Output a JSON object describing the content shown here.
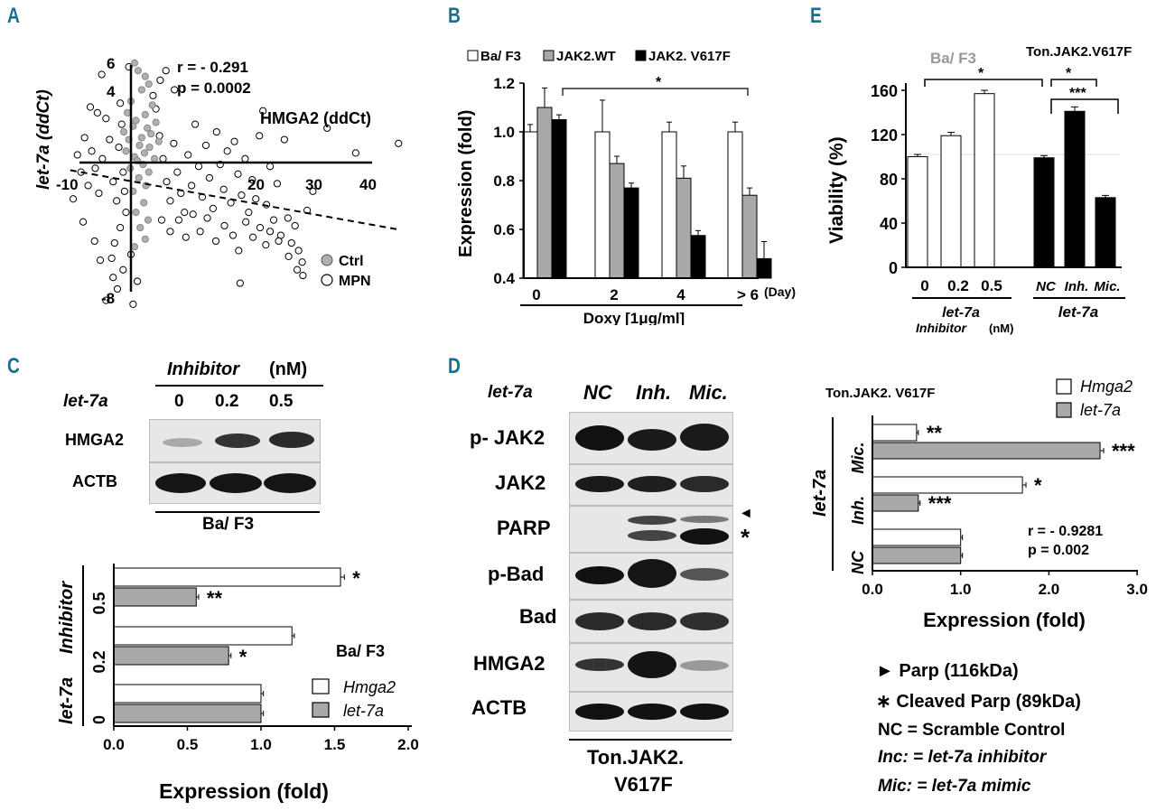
{
  "panels": {
    "a": {
      "letter": "A"
    },
    "b": {
      "letter": "B"
    },
    "c": {
      "letter": "C"
    },
    "d": {
      "letter": "D"
    },
    "e": {
      "letter": "E"
    }
  },
  "chart_data": [
    {
      "id": "A",
      "type": "scatter",
      "xlabel": "HMGA2 (ddCt)",
      "ylabel": "let-7a (ddCt)",
      "xticks": [
        "-10",
        "20",
        "30",
        "40"
      ],
      "yticks": [
        "6",
        "4",
        "-8"
      ],
      "xlim": [
        -12,
        42
      ],
      "ylim": [
        -8.5,
        6.5
      ],
      "stats": {
        "r": "r = - 0.291",
        "p": "p = 0.0002"
      },
      "legend": [
        {
          "name": "Ctrl",
          "color": "#b0b0b0"
        },
        {
          "name": "MPN",
          "color": "#ffffff"
        }
      ],
      "trendline": {
        "x": [
          -10,
          36
        ],
        "y": [
          -0.4,
          -3.5
        ],
        "style": "dashed"
      },
      "series": [
        {
          "name": "Ctrl",
          "color": "#b0b0b0",
          "points": [
            [
              -1,
              5.2
            ],
            [
              -0.5,
              4.8
            ],
            [
              0.5,
              4.5
            ],
            [
              1,
              4.1
            ],
            [
              0,
              3.8
            ],
            [
              -1.5,
              3.2
            ],
            [
              1.5,
              3.0
            ],
            [
              -2,
              2.6
            ],
            [
              0.5,
              2.5
            ],
            [
              -0.8,
              2.2
            ],
            [
              2,
              2.1
            ],
            [
              -1.2,
              1.9
            ],
            [
              0.8,
              1.8
            ],
            [
              -2.5,
              1.6
            ],
            [
              1.3,
              1.5
            ],
            [
              0,
              1.3
            ],
            [
              -1.8,
              1.2
            ],
            [
              2.4,
              1.1
            ],
            [
              -0.3,
              0.9
            ],
            [
              1.1,
              0.8
            ],
            [
              -2.2,
              0.6
            ],
            [
              0.4,
              0.5
            ],
            [
              -1,
              0.3
            ],
            [
              1.8,
              0.2
            ],
            [
              -0.6,
              0.1
            ],
            [
              0.2,
              -0.1
            ],
            [
              -1.6,
              -0.3
            ],
            [
              1,
              -0.5
            ],
            [
              -0.4,
              -0.8
            ],
            [
              0.6,
              -1.2
            ],
            [
              -1.2,
              -1.5
            ],
            [
              0.3,
              -2.1
            ],
            [
              -0.8,
              -2.6
            ],
            [
              0.9,
              -3.0
            ],
            [
              -0.2,
              -3.4
            ],
            [
              0.5,
              -4.0
            ],
            [
              -1,
              -4.4
            ]
          ]
        },
        {
          "name": "MPN",
          "color": "#ffffff",
          "points": [
            [
              -9,
              0.4
            ],
            [
              -8,
              1.3
            ],
            [
              -7,
              0.6
            ],
            [
              -6.5,
              -0.3
            ],
            [
              -8.5,
              -0.5
            ],
            [
              -5,
              2.3
            ],
            [
              -4.5,
              1.2
            ],
            [
              -5.5,
              0.2
            ],
            [
              -4,
              -1.0
            ],
            [
              -3.5,
              -2.0
            ],
            [
              -6,
              -1.6
            ],
            [
              -7.5,
              -1.2
            ],
            [
              -3,
              3.1
            ],
            [
              -2.8,
              2.0
            ],
            [
              -3.2,
              0.8
            ],
            [
              -2.6,
              -0.5
            ],
            [
              -2.4,
              -1.5
            ],
            [
              -2.2,
              -2.6
            ],
            [
              -3,
              -3.4
            ],
            [
              -3.8,
              -4.2
            ],
            [
              -4.2,
              -5.0
            ],
            [
              -2.6,
              -5.6
            ],
            [
              -3.4,
              -6.6
            ],
            [
              -5,
              -7.2
            ],
            [
              -4,
              -6.0
            ],
            [
              -1.5,
              -4.8
            ],
            [
              2,
              2.8
            ],
            [
              2.5,
              1.4
            ],
            [
              3,
              0.2
            ],
            [
              3.5,
              -1.0
            ],
            [
              4,
              -2.0
            ],
            [
              2.8,
              -3.0
            ],
            [
              4.5,
              1.0
            ],
            [
              5,
              -0.5
            ],
            [
              5.5,
              -1.6
            ],
            [
              6,
              -2.6
            ],
            [
              4,
              -3.6
            ],
            [
              6.5,
              0.4
            ],
            [
              7,
              -1.2
            ],
            [
              7.5,
              2.0
            ],
            [
              8,
              -0.2
            ],
            [
              8.5,
              -1.8
            ],
            [
              9,
              0.9
            ],
            [
              9.5,
              -0.8
            ],
            [
              10,
              -2.4
            ],
            [
              10.5,
              1.6
            ],
            [
              11,
              -0.1
            ],
            [
              11.5,
              -1.4
            ],
            [
              12,
              0.6
            ],
            [
              12.5,
              -2.1
            ],
            [
              13,
              1.1
            ],
            [
              13.5,
              -0.6
            ],
            [
              14,
              -1.7
            ],
            [
              14.5,
              0.2
            ],
            [
              15,
              -2.6
            ],
            [
              15.5,
              -0.9
            ],
            [
              16,
              -1.9
            ],
            [
              16.5,
              1.4
            ],
            [
              17,
              2.7
            ],
            [
              17.5,
              -2.2
            ],
            [
              18,
              -0.2
            ],
            [
              18.5,
              -3.0
            ],
            [
              18,
              -3.6
            ],
            [
              19,
              -1.1
            ],
            [
              19.5,
              -3.8
            ],
            [
              20,
              1.2
            ],
            [
              20.5,
              -2.9
            ],
            [
              21,
              -4.2
            ],
            [
              21.5,
              -3.3
            ],
            [
              22,
              -4.6
            ],
            [
              22.5,
              -5.2
            ],
            [
              21.8,
              -5.6
            ],
            [
              22.6,
              -5.9
            ],
            [
              20.6,
              -4.9
            ],
            [
              19.2,
              -4.1
            ],
            [
              17.4,
              -4.3
            ],
            [
              16.6,
              -3.4
            ],
            [
              15.6,
              -3.9
            ],
            [
              14.6,
              -3.1
            ],
            [
              13.6,
              -4.6
            ],
            [
              12.8,
              -3.8
            ],
            [
              11.6,
              -3.3
            ],
            [
              13.8,
              -6.3
            ],
            [
              10.4,
              -4.1
            ],
            [
              9.2,
              -2.9
            ],
            [
              8.2,
              -3.6
            ],
            [
              7.2,
              -2.7
            ],
            [
              6.2,
              -3.9
            ],
            [
              5.2,
              -3.0
            ],
            [
              2.6,
              4.3
            ],
            [
              3.4,
              4.8
            ],
            [
              36,
              1.0
            ],
            [
              30,
              0.5
            ],
            [
              26,
              1.8
            ],
            [
              24,
              -1.5
            ],
            [
              23.2,
              -2.5
            ],
            [
              1.6,
              3.5
            ],
            [
              -1.8,
              5.0
            ],
            [
              -0.6,
              -6.2
            ],
            [
              -6.2,
              2.6
            ],
            [
              -1.2,
              -7.4
            ],
            [
              -5.6,
              4.6
            ],
            [
              4.6,
              3.8
            ],
            [
              -7.2,
              2.9
            ],
            [
              -9.6,
              -1.9
            ],
            [
              -8.2,
              -3.1
            ],
            [
              -6.6,
              -4.1
            ],
            [
              -5.8,
              -5.1
            ]
          ]
        }
      ]
    },
    {
      "id": "B",
      "type": "bar",
      "ylabel": "Expression (fold)",
      "xlabel": "Doxy [1μg/ml]",
      "x_unit": "(Day)",
      "categories": [
        "0",
        "2",
        "4",
        "> 6"
      ],
      "yticks": [
        "0.4",
        "0.6",
        "0.8",
        "1.0",
        "1.2"
      ],
      "ylim": [
        0.4,
        1.2
      ],
      "significance": "*",
      "series": [
        {
          "name": "Ba/ F3",
          "color": "#ffffff",
          "values": [
            1.0,
            1.0,
            1.0,
            1.0
          ],
          "errors": [
            0.03,
            0.13,
            0.04,
            0.04
          ]
        },
        {
          "name": "JAK2.WT",
          "color": "#a9a9a9",
          "values": [
            1.1,
            0.87,
            0.81,
            0.74
          ],
          "errors": [
            0.08,
            0.03,
            0.05,
            0.03
          ]
        },
        {
          "name": "JAK2. V617F",
          "color": "#000000",
          "values": [
            1.05,
            0.77,
            0.575,
            0.48
          ],
          "errors": [
            0.02,
            0.02,
            0.02,
            0.07
          ]
        }
      ]
    },
    {
      "id": "E",
      "type": "bar",
      "ylabel": "Viability (%)",
      "yticks": [
        "0",
        "40",
        "80",
        "120",
        "160"
      ],
      "ylim": [
        0,
        170
      ],
      "groups": [
        {
          "title": "Ba/ F3",
          "categories": [
            "0",
            "0.2",
            "0.5"
          ],
          "color": "#ffffff",
          "values": [
            100,
            119,
            157
          ],
          "errors": [
            2,
            3,
            3
          ],
          "axis_label": "let-7a",
          "axis_sublabel": "Inhibitor",
          "axis_unit": "(nM)"
        },
        {
          "title": "Ton.JAK2.V617F",
          "categories": [
            "NC",
            "Inh.",
            "Mic."
          ],
          "color": "#000000",
          "values": [
            99,
            141,
            63
          ],
          "errors": [
            2,
            4,
            2
          ],
          "axis_label": "let-7a"
        }
      ],
      "significance": [
        "*",
        "*",
        "***"
      ]
    },
    {
      "id": "C-bar",
      "type": "bar",
      "orientation": "horizontal",
      "xlabel": "Expression (fold)",
      "ylabel_main": "let-7a",
      "ylabel_sub": "Inhibitor",
      "categories": [
        "0.5",
        "0.2",
        "0"
      ],
      "xticks": [
        "0.0",
        "0.5",
        "1.0",
        "1.5",
        "2.0"
      ],
      "xlim": [
        0,
        2.0
      ],
      "cell_label": "Ba/ F3",
      "series": [
        {
          "name": "Hmga2",
          "color": "#ffffff",
          "values": [
            1.54,
            1.21,
            1.0
          ],
          "errors": [
            0.02,
            0.01,
            0.01
          ],
          "marks": [
            "*",
            "",
            ""
          ]
        },
        {
          "name": "let-7a",
          "color": "#a9a9a9",
          "values": [
            0.56,
            0.78,
            1.0
          ],
          "errors": [
            0.01,
            0.01,
            0.01
          ],
          "marks": [
            "**",
            "*",
            ""
          ]
        }
      ]
    },
    {
      "id": "D-bar",
      "type": "bar",
      "orientation": "horizontal",
      "title": "Ton.JAK2. V617F",
      "xlabel": "Expression (fold)",
      "ylabel_main": "let-7a",
      "categories": [
        "Mic.",
        "Inh.",
        "NC"
      ],
      "xticks": [
        "0.0",
        "1.0",
        "2.0",
        "3.0"
      ],
      "xlim": [
        0,
        3.0
      ],
      "stats": {
        "r": "r = - 0.9281",
        "p": "p = 0.002"
      },
      "series": [
        {
          "name": "Hmga2",
          "color": "#ffffff",
          "values": [
            0.5,
            1.7,
            1.0
          ],
          "errors": [
            0.01,
            0.03,
            0.01
          ],
          "marks": [
            "**",
            "*",
            ""
          ]
        },
        {
          "name": "let-7a",
          "color": "#a9a9a9",
          "values": [
            2.58,
            0.52,
            1.0
          ],
          "errors": [
            0.03,
            0.01,
            0.01
          ],
          "marks": [
            "***",
            "***",
            ""
          ]
        }
      ]
    }
  ],
  "blot_c": {
    "header": "Inhibitor",
    "unit": "(nM)",
    "row_label": "let-7a",
    "lanes": [
      "0",
      "0.2",
      "0.5"
    ],
    "rows": [
      "HMGA2",
      "ACTB"
    ],
    "footer": "Ba/ F3"
  },
  "blot_d": {
    "row_label": "let-7a",
    "lanes": [
      "NC",
      "Inh.",
      "Mic."
    ],
    "rows": [
      "p- JAK2",
      "JAK2",
      "PARP",
      "p-Bad",
      "Bad",
      "HMGA2",
      "ACTB"
    ],
    "footer_line1": "Ton.JAK2.",
    "footer_line2": "V617F",
    "parp_markers": [
      "◄",
      "*"
    ]
  },
  "legend_notes": [
    "► Parp (116kDa)",
    "∗ Cleaved Parp (89kDa)",
    "NC = Scramble Control",
    "Inc: = let-7a inhibitor",
    "Mic: = let-7a mimic"
  ]
}
